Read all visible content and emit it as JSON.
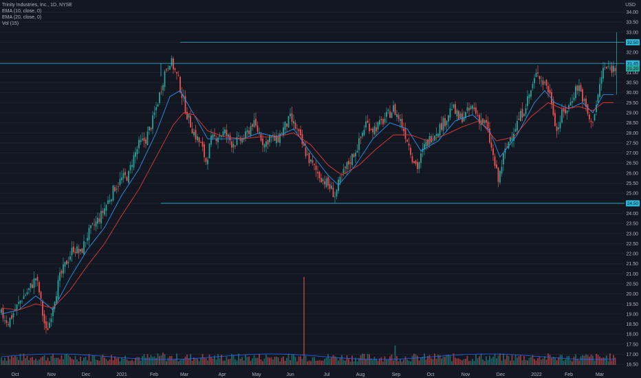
{
  "chart_data": {
    "type": "candlestick",
    "title": "Trinity Industries, Inc., 1D, NYSE",
    "indicators": [
      "EMA (10, close, 0)",
      "EMA (20, close, 0)",
      "Vol (15)"
    ],
    "currency": "USD",
    "ylim": [
      16.3,
      34.6
    ],
    "y_ticks": [
      16.5,
      17.0,
      17.5,
      18.0,
      18.5,
      19.0,
      19.5,
      20.0,
      20.5,
      21.0,
      21.5,
      22.0,
      22.5,
      23.0,
      23.5,
      24.0,
      24.5,
      25.0,
      25.5,
      26.0,
      26.5,
      27.0,
      27.5,
      28.0,
      28.5,
      29.0,
      29.5,
      30.0,
      30.5,
      31.0,
      31.5,
      32.0,
      32.5,
      33.0,
      33.5,
      34.0
    ],
    "x_ticks": [
      "Oct",
      "Nov",
      "Dec",
      "2021",
      "Feb",
      "Mar",
      "Apr",
      "May",
      "Jun",
      "Jul",
      "Aug",
      "Sep",
      "Oct",
      "Nov",
      "Dec",
      "2022",
      "Feb",
      "Mar"
    ],
    "levels": [
      {
        "name": "resistance-high",
        "value": 32.5,
        "label": "32.50"
      },
      {
        "name": "resistance",
        "value": 31.45,
        "label": "31.45"
      },
      {
        "name": "support",
        "value": 24.5,
        "label": "24.50"
      }
    ],
    "last_price": 31.2,
    "last_price_label": "31.20",
    "price_path": [
      [
        0,
        19.0
      ],
      [
        4,
        18.6
      ],
      [
        8,
        19.2
      ],
      [
        12,
        19.8
      ],
      [
        16,
        20.2
      ],
      [
        20,
        20.8
      ],
      [
        22,
        20.1
      ],
      [
        24,
        19.0
      ],
      [
        26,
        18.1
      ],
      [
        28,
        18.6
      ],
      [
        30,
        19.5
      ],
      [
        34,
        20.8
      ],
      [
        38,
        21.6
      ],
      [
        42,
        22.3
      ],
      [
        46,
        22.0
      ],
      [
        50,
        22.9
      ],
      [
        54,
        23.4
      ],
      [
        58,
        23.9
      ],
      [
        62,
        24.6
      ],
      [
        66,
        25.3
      ],
      [
        70,
        25.7
      ],
      [
        74,
        25.9
      ],
      [
        76,
        26.6
      ],
      [
        80,
        27.4
      ],
      [
        84,
        27.7
      ],
      [
        88,
        28.6
      ],
      [
        92,
        29.9
      ],
      [
        95,
        31.0
      ],
      [
        98,
        31.6
      ],
      [
        100,
        31.3
      ],
      [
        103,
        30.6
      ],
      [
        105,
        29.9
      ],
      [
        108,
        28.9
      ],
      [
        112,
        28.0
      ],
      [
        116,
        27.4
      ],
      [
        119,
        26.6
      ],
      [
        122,
        27.6
      ],
      [
        126,
        27.9
      ],
      [
        130,
        28.0
      ],
      [
        134,
        27.5
      ],
      [
        138,
        27.6
      ],
      [
        142,
        27.8
      ],
      [
        146,
        28.5
      ],
      [
        150,
        28.0
      ],
      [
        153,
        27.4
      ],
      [
        156,
        27.8
      ],
      [
        160,
        27.6
      ],
      [
        164,
        28.2
      ],
      [
        168,
        28.7
      ],
      [
        172,
        28.1
      ],
      [
        176,
        27.2
      ],
      [
        180,
        26.5
      ],
      [
        184,
        26.0
      ],
      [
        188,
        25.6
      ],
      [
        191,
        25.3
      ],
      [
        194,
        24.9
      ],
      [
        196,
        25.4
      ],
      [
        200,
        26.2
      ],
      [
        204,
        26.8
      ],
      [
        208,
        27.5
      ],
      [
        212,
        28.5
      ],
      [
        216,
        28.2
      ],
      [
        220,
        28.4
      ],
      [
        224,
        28.8
      ],
      [
        228,
        29.2
      ],
      [
        232,
        28.6
      ],
      [
        236,
        27.7
      ],
      [
        239,
        26.8
      ],
      [
        242,
        26.3
      ],
      [
        246,
        27.3
      ],
      [
        250,
        27.8
      ],
      [
        254,
        28.2
      ],
      [
        258,
        28.6
      ],
      [
        262,
        29.3
      ],
      [
        266,
        28.7
      ],
      [
        270,
        28.9
      ],
      [
        274,
        29.3
      ],
      [
        278,
        28.7
      ],
      [
        282,
        28.4
      ],
      [
        286,
        26.8
      ],
      [
        289,
        25.6
      ],
      [
        292,
        26.8
      ],
      [
        296,
        27.8
      ],
      [
        300,
        28.5
      ],
      [
        304,
        29.2
      ],
      [
        308,
        30.1
      ],
      [
        312,
        31.1
      ],
      [
        314,
        30.6
      ],
      [
        317,
        30.4
      ],
      [
        320,
        29.6
      ],
      [
        323,
        28.1
      ],
      [
        326,
        28.9
      ],
      [
        330,
        29.3
      ],
      [
        334,
        30.2
      ],
      [
        336,
        30.3
      ],
      [
        340,
        29.2
      ],
      [
        343,
        28.4
      ],
      [
        346,
        29.4
      ],
      [
        350,
        31.2
      ]
    ],
    "ema10_path": [
      [
        0,
        19.0
      ],
      [
        10,
        19.2
      ],
      [
        20,
        19.9
      ],
      [
        26,
        19.5
      ],
      [
        30,
        19.2
      ],
      [
        40,
        20.8
      ],
      [
        50,
        22.2
      ],
      [
        60,
        23.3
      ],
      [
        70,
        24.9
      ],
      [
        80,
        26.2
      ],
      [
        90,
        28.0
      ],
      [
        98,
        29.8
      ],
      [
        104,
        30.1
      ],
      [
        110,
        29.2
      ],
      [
        120,
        27.7
      ],
      [
        130,
        27.7
      ],
      [
        140,
        27.7
      ],
      [
        150,
        28.0
      ],
      [
        160,
        27.8
      ],
      [
        170,
        28.2
      ],
      [
        180,
        27.0
      ],
      [
        190,
        25.9
      ],
      [
        196,
        25.4
      ],
      [
        206,
        26.4
      ],
      [
        216,
        27.7
      ],
      [
        226,
        28.5
      ],
      [
        236,
        28.2
      ],
      [
        244,
        27.1
      ],
      [
        254,
        27.6
      ],
      [
        264,
        28.6
      ],
      [
        274,
        28.9
      ],
      [
        284,
        28.1
      ],
      [
        290,
        26.8
      ],
      [
        300,
        27.9
      ],
      [
        310,
        29.5
      ],
      [
        316,
        30.1
      ],
      [
        322,
        29.5
      ],
      [
        330,
        29.2
      ],
      [
        338,
        29.5
      ],
      [
        344,
        29.0
      ],
      [
        350,
        29.9
      ]
    ],
    "ema20_path": [
      [
        0,
        19.3
      ],
      [
        10,
        19.2
      ],
      [
        20,
        19.5
      ],
      [
        30,
        19.3
      ],
      [
        40,
        20.2
      ],
      [
        50,
        21.4
      ],
      [
        60,
        22.5
      ],
      [
        70,
        23.9
      ],
      [
        80,
        25.2
      ],
      [
        90,
        26.8
      ],
      [
        100,
        28.4
      ],
      [
        106,
        29.0
      ],
      [
        112,
        28.9
      ],
      [
        120,
        28.1
      ],
      [
        130,
        27.8
      ],
      [
        140,
        27.7
      ],
      [
        150,
        27.8
      ],
      [
        160,
        27.8
      ],
      [
        170,
        28.0
      ],
      [
        180,
        27.4
      ],
      [
        190,
        26.4
      ],
      [
        198,
        25.9
      ],
      [
        208,
        26.4
      ],
      [
        218,
        27.2
      ],
      [
        228,
        27.9
      ],
      [
        238,
        27.9
      ],
      [
        248,
        27.6
      ],
      [
        258,
        27.9
      ],
      [
        268,
        28.3
      ],
      [
        278,
        28.6
      ],
      [
        288,
        27.6
      ],
      [
        298,
        27.8
      ],
      [
        308,
        28.8
      ],
      [
        318,
        29.5
      ],
      [
        326,
        29.2
      ],
      [
        336,
        29.3
      ],
      [
        344,
        29.1
      ],
      [
        350,
        29.5
      ]
    ],
    "volume_spikes": [
      {
        "x": 176,
        "relative": 1.0
      },
      {
        "x": 229,
        "relative": 0.22
      },
      {
        "x": 94,
        "relative": 0.14
      }
    ]
  }
}
